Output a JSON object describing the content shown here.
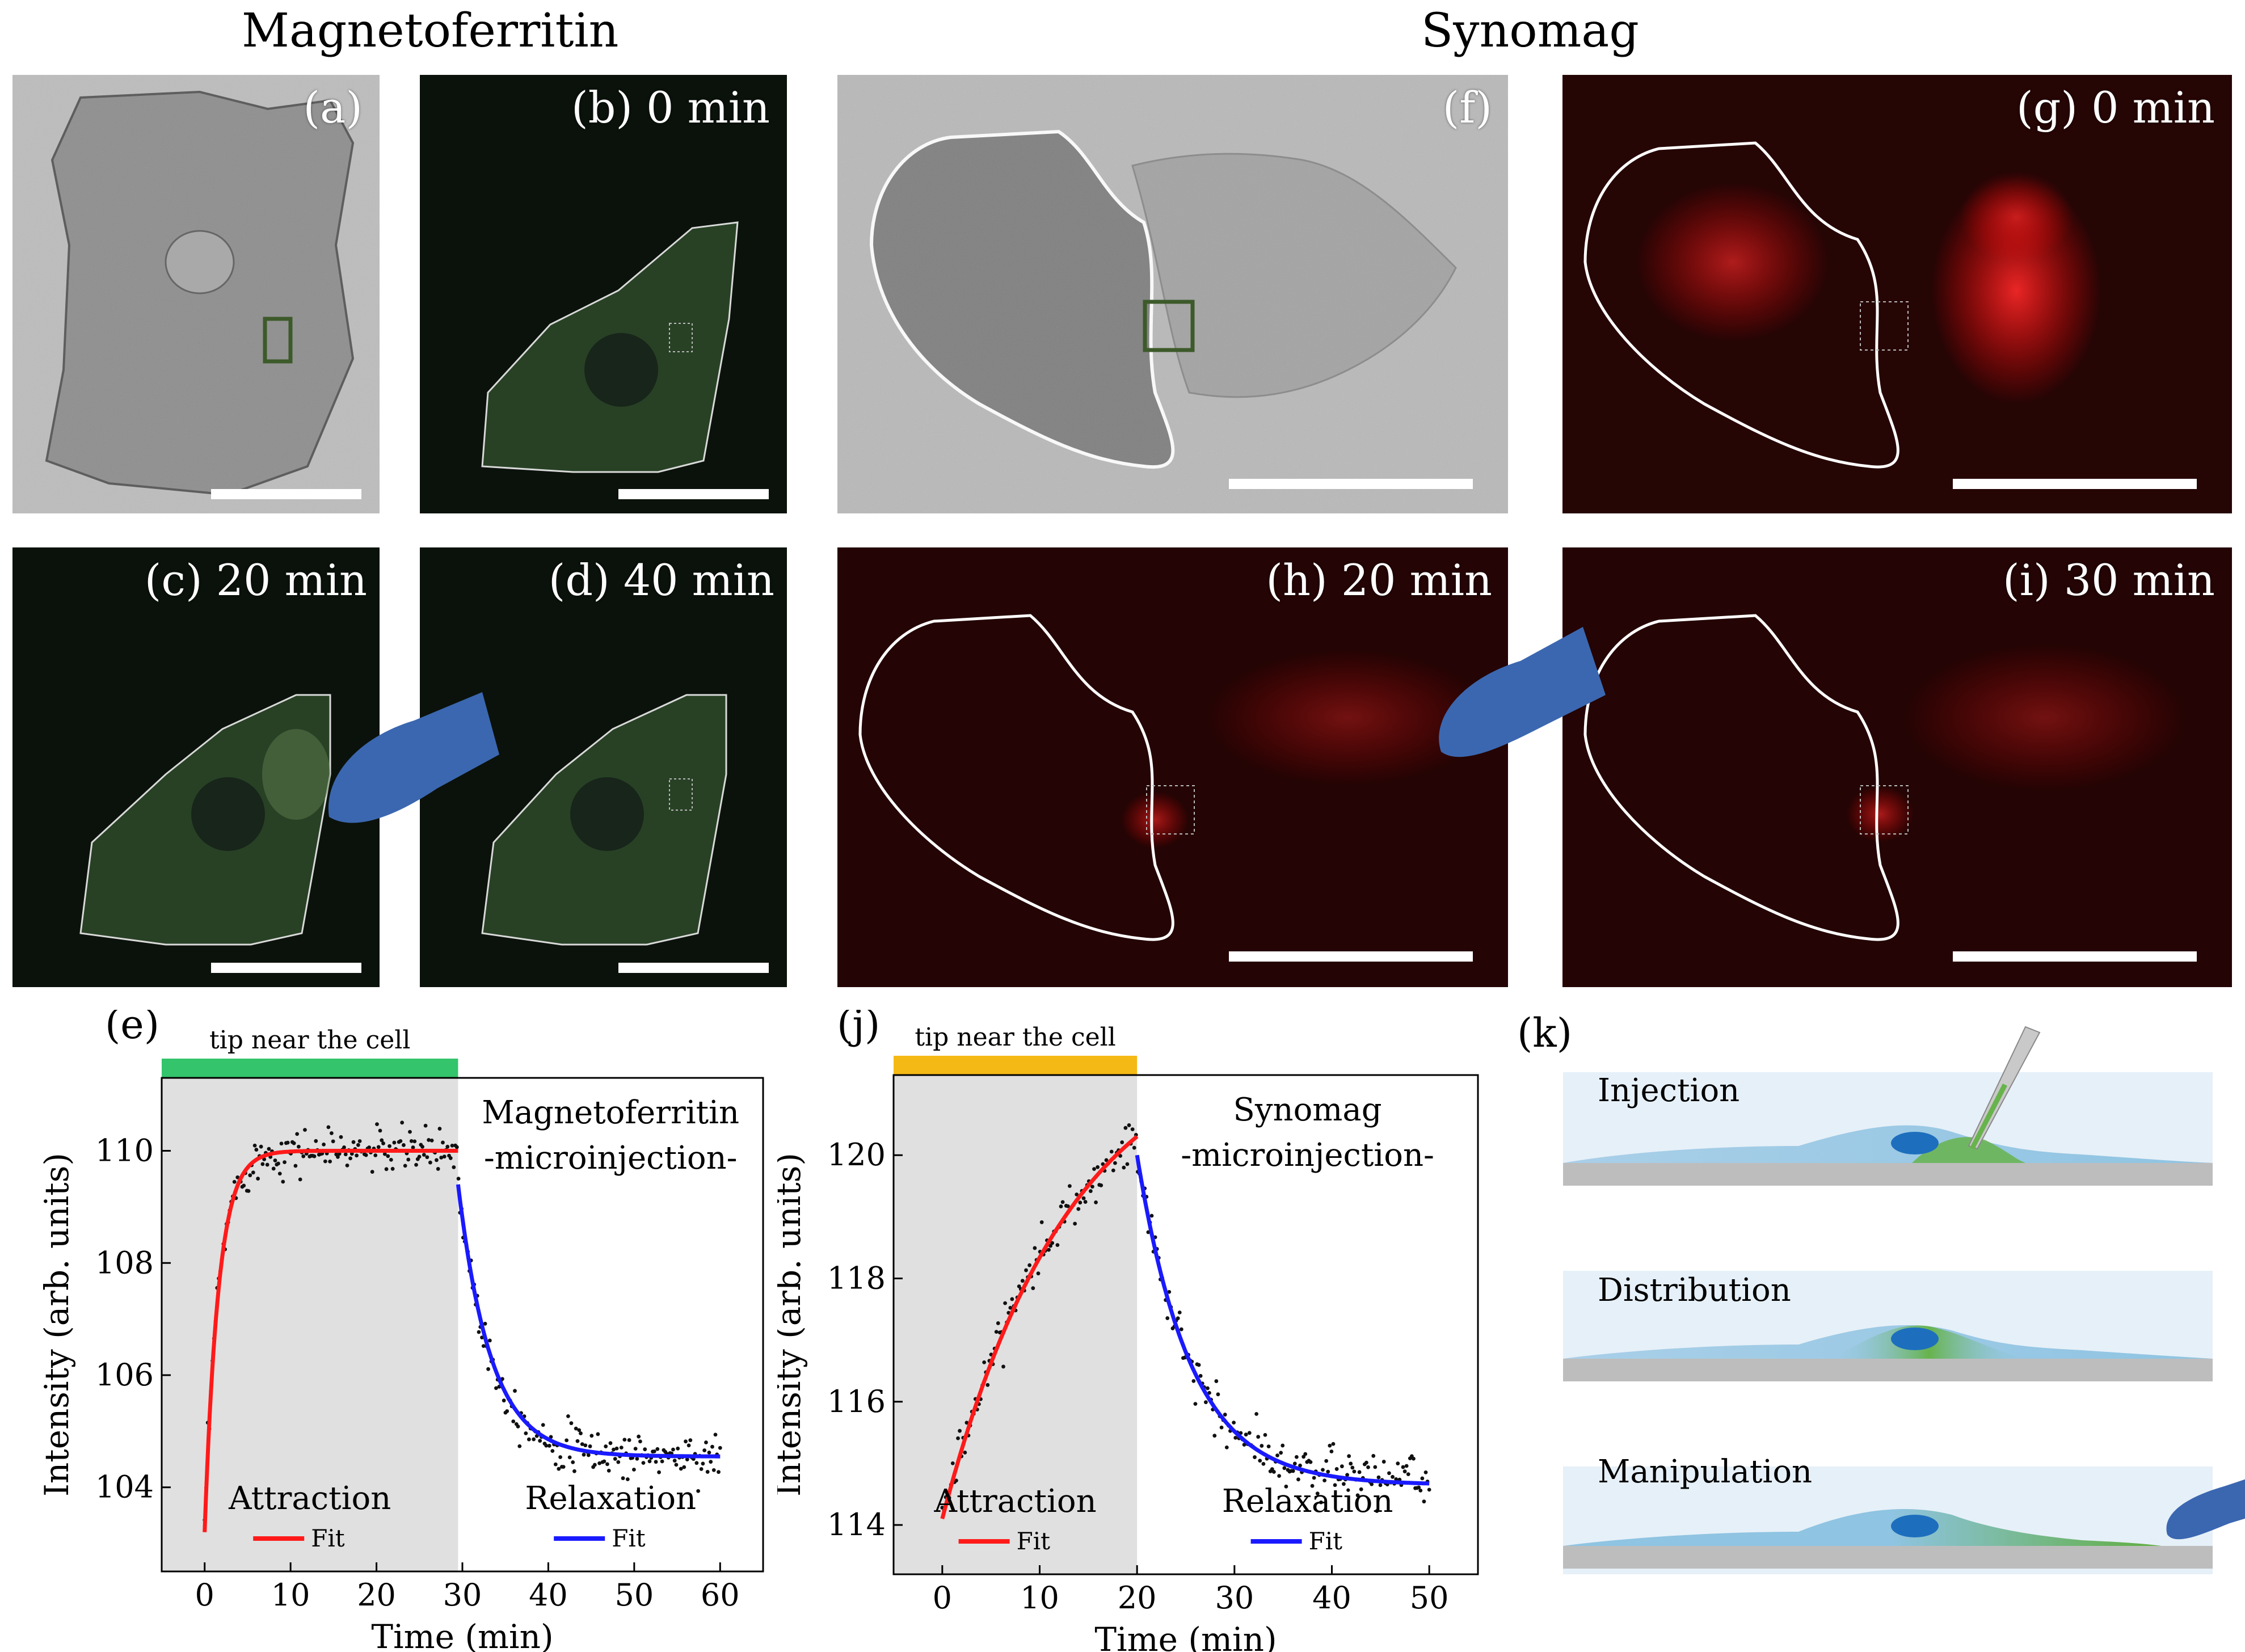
{
  "headings": {
    "left": "Magnetoferritin",
    "right": "Synomag"
  },
  "micro_panels": {
    "a": {
      "label": "(a)"
    },
    "b": {
      "label": "(b) 0 min"
    },
    "c": {
      "label": "(c) 20 min"
    },
    "d": {
      "label": "(d) 40 min"
    },
    "f": {
      "label": "(f)"
    },
    "g": {
      "label": "(g) 0 min"
    },
    "h": {
      "label": "(h) 20 min"
    },
    "i": {
      "label": "(i) 30 min"
    }
  },
  "colors": {
    "fluor_green": "#9fc98f",
    "fluor_red": "#ff2020",
    "tip_blue": "#3b67b0",
    "bar_green": "#34c46b",
    "bar_yellow": "#f5b915",
    "fit_red": "#ff1a1a",
    "fit_blue": "#1a1aff"
  },
  "chart_data": [
    {
      "id": "e",
      "panel_label": "(e)",
      "type": "scatter",
      "title": "Magnetoferritin",
      "subtitle": "-microinjection-",
      "xlabel": "Time (min)",
      "ylabel": "Intensity (arb. units)",
      "xlim": [
        -5,
        65
      ],
      "ylim": [
        102.5,
        111.3
      ],
      "xticks": [
        0,
        10,
        20,
        30,
        40,
        50,
        60
      ],
      "yticks": [
        104,
        106,
        108,
        110
      ],
      "bar_label": "tip near the cell",
      "shaded_range": [
        -5,
        29.5
      ],
      "phase_labels": [
        "Attraction",
        "Relaxation"
      ],
      "legend_label": "Fit",
      "attraction_fit": {
        "t0": 0,
        "t1": 29.5,
        "y0": 103.2,
        "y_inf": 110.0,
        "tau": 1.6
      },
      "relaxation_fit": {
        "t0": 29.5,
        "t1": 60,
        "y0": 109.4,
        "y_inf": 104.55,
        "tau": 3.8
      },
      "scatter_noise": 0.2,
      "scatter_points": 330
    },
    {
      "id": "j",
      "panel_label": "(j)",
      "type": "scatter",
      "title": "Synomag",
      "subtitle": "-microinjection-",
      "xlabel": "Time (min)",
      "ylabel": "Intensity (arb. units)",
      "xlim": [
        -5,
        55
      ],
      "ylim": [
        113.2,
        121.3
      ],
      "xticks": [
        0,
        10,
        20,
        30,
        40,
        50
      ],
      "yticks": [
        114,
        116,
        118,
        120
      ],
      "bar_label": "tip near the cell",
      "shaded_range": [
        -5,
        20
      ],
      "phase_labels": [
        "Attraction",
        "Relaxation"
      ],
      "legend_label": "Fit",
      "attraction_fit": {
        "t0": 0,
        "t1": 20,
        "y0": 114.1,
        "y_inf": 122.0,
        "tau": 13
      },
      "relaxation_fit": {
        "t0": 20,
        "t1": 50,
        "y0": 120.0,
        "y_inf": 114.65,
        "tau": 5.5
      },
      "scatter_noise": 0.2,
      "scatter_points": 280
    }
  ],
  "schematic": {
    "panel_label": "(k)",
    "steps": [
      "Injection",
      "Distribution",
      "Manipulation"
    ]
  }
}
